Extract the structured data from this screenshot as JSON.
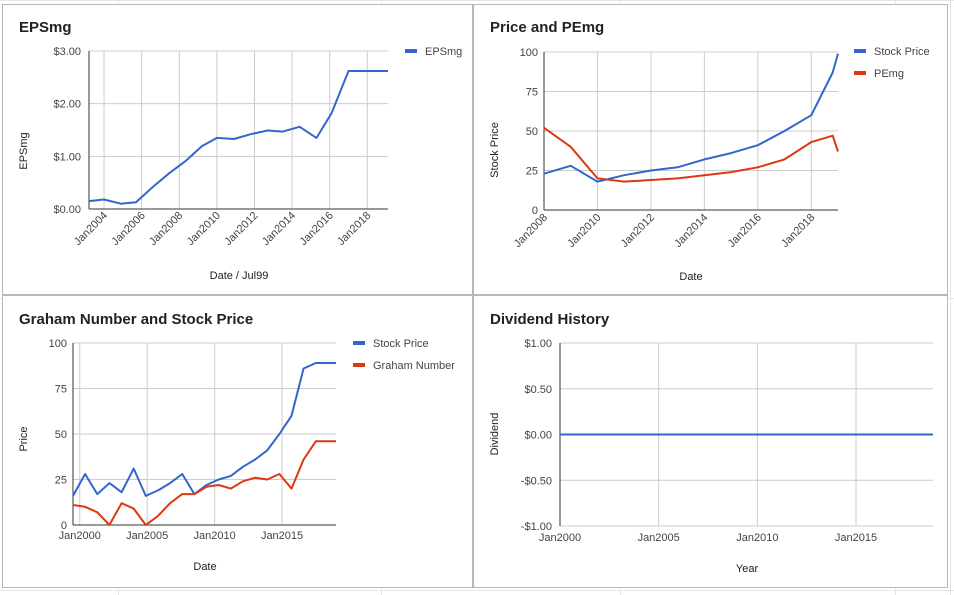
{
  "charts": [
    {
      "id": "eps",
      "title": "EPSmg",
      "xlabel": "Date / Jul99",
      "ylabel": "EPSmg",
      "chart_data": {
        "type": "line",
        "title": "EPSmg",
        "xlabel": "Date / Jul99",
        "ylabel": "EPSmg",
        "x_domain": [
          2003.2,
          2019.1
        ],
        "ylim": [
          0,
          3
        ],
        "y_ticks": [
          0,
          1,
          2,
          3
        ],
        "y_tick_labels": [
          "$0.00",
          "$1.00",
          "$2.00",
          "$3.00"
        ],
        "x_ticks": [
          2004,
          2006,
          2008,
          2010,
          2012,
          2014,
          2016,
          2018
        ],
        "x_tick_labels": [
          "Jan2004",
          "Jan2006",
          "Jan2008",
          "Jan2010",
          "Jan2012",
          "Jan2014",
          "Jan2016",
          "Jan2018"
        ],
        "x_label_rotation": -45,
        "legend_position": "top-right",
        "grid": true,
        "series": [
          {
            "name": "EPSmg",
            "color": "#3366cc",
            "x": [
              2003.2,
              2004.0,
              2004.9,
              2005.7,
              2006.6,
              2007.5,
              2008.3,
              2009.2,
              2010.0,
              2010.9,
              2011.8,
              2012.7,
              2013.5,
              2014.4,
              2015.3,
              2016.1,
              2017.0,
              2017.9,
              2018.7,
              2019.1
            ],
            "y": [
              0.15,
              0.18,
              0.1,
              0.13,
              0.42,
              0.69,
              0.9,
              1.19,
              1.35,
              1.33,
              1.42,
              1.49,
              1.47,
              1.56,
              1.35,
              1.82,
              2.62,
              2.62,
              2.62,
              2.62
            ]
          }
        ]
      }
    },
    {
      "id": "pe",
      "title": "Price and PEmg",
      "xlabel": "Date",
      "ylabel": "Stock Price",
      "chart_data": {
        "type": "line",
        "title": "Price and PEmg",
        "xlabel": "Date",
        "ylabel": "Stock Price",
        "x_domain": [
          2008.0,
          2019.0
        ],
        "ylim": [
          0,
          100
        ],
        "y_ticks": [
          0,
          25,
          50,
          75,
          100
        ],
        "y_tick_labels": [
          "0",
          "25",
          "50",
          "75",
          "100"
        ],
        "x_ticks": [
          2008,
          2010,
          2012,
          2014,
          2016,
          2018
        ],
        "x_tick_labels": [
          "Jan2008",
          "Jan2010",
          "Jan2012",
          "Jan2014",
          "Jan2016",
          "Jan2018"
        ],
        "x_label_rotation": -45,
        "legend_position": "top-right",
        "grid": true,
        "series": [
          {
            "name": "Stock Price",
            "color": "#3366cc",
            "x": [
              2008.0,
              2009.0,
              2010.0,
              2011.0,
              2012.0,
              2013.0,
              2014.0,
              2015.0,
              2016.0,
              2017.0,
              2018.0,
              2018.8,
              2019.0
            ],
            "y": [
              23,
              28,
              18,
              22,
              25,
              27,
              32,
              36,
              41,
              50,
              60,
              87,
              99
            ]
          },
          {
            "name": "PEmg",
            "color": "#dc3912",
            "x": [
              2008.0,
              2009.0,
              2010.0,
              2011.0,
              2012.0,
              2013.0,
              2014.0,
              2015.0,
              2016.0,
              2017.0,
              2018.0,
              2018.8,
              2019.0
            ],
            "y": [
              52,
              40,
              20,
              18,
              19,
              20,
              22,
              24,
              27,
              32,
              43,
              47,
              37
            ]
          }
        ]
      }
    },
    {
      "id": "graham",
      "title": "Graham Number and Stock Price",
      "xlabel": "Date",
      "ylabel": "Price",
      "chart_data": {
        "type": "line",
        "title": "Graham Number and Stock Price",
        "xlabel": "Date",
        "ylabel": "Price",
        "x_domain": [
          1999.5,
          2019.0
        ],
        "ylim": [
          0,
          100
        ],
        "y_ticks": [
          0,
          25,
          50,
          75,
          100
        ],
        "y_tick_labels": [
          "0",
          "25",
          "50",
          "75",
          "100"
        ],
        "x_ticks": [
          2000,
          2005,
          2010,
          2015
        ],
        "x_tick_labels": [
          "Jan2000",
          "Jan2005",
          "Jan2010",
          "Jan2015"
        ],
        "x_label_rotation": 0,
        "legend_position": "top-right",
        "grid": true,
        "series": [
          {
            "name": "Stock Price",
            "color": "#3366cc",
            "x": [
              1999.5,
              2000.4,
              2001.3,
              2002.2,
              2003.1,
              2004.0,
              2004.9,
              2005.8,
              2006.7,
              2007.6,
              2008.5,
              2009.4,
              2010.3,
              2011.2,
              2012.1,
              2013.0,
              2013.9,
              2014.8,
              2015.7,
              2016.6,
              2017.5,
              2018.4,
              2019.0
            ],
            "y": [
              16,
              28,
              17,
              23,
              18,
              31,
              16,
              19,
              23,
              28,
              17,
              22,
              25,
              27,
              32,
              36,
              41,
              50,
              60,
              86,
              89,
              89,
              89
            ]
          },
          {
            "name": "Graham Number",
            "color": "#dc3912",
            "x": [
              1999.5,
              2000.4,
              2001.3,
              2002.2,
              2003.1,
              2004.0,
              2004.9,
              2005.8,
              2006.7,
              2007.6,
              2008.5,
              2009.4,
              2010.3,
              2011.2,
              2012.1,
              2013.0,
              2013.9,
              2014.8,
              2015.7,
              2016.6,
              2017.5,
              2018.4,
              2019.0
            ],
            "y": [
              11,
              10,
              7,
              0,
              12,
              9,
              0,
              5,
              12,
              17,
              17,
              21,
              22,
              20,
              24,
              26,
              25,
              28,
              20,
              36,
              46,
              46,
              46
            ]
          }
        ]
      }
    },
    {
      "id": "dividend",
      "title": "Dividend History",
      "xlabel": "Year",
      "ylabel": "Dividend",
      "chart_data": {
        "type": "line",
        "title": "Dividend History",
        "xlabel": "Year",
        "ylabel": "Dividend",
        "x_domain": [
          2000.0,
          2018.9
        ],
        "ylim": [
          -1,
          1
        ],
        "y_ticks": [
          -1,
          -0.5,
          0,
          0.5,
          1
        ],
        "y_tick_labels": [
          "-$1.00",
          "-$0.50",
          "$0.00",
          "$0.50",
          "$1.00"
        ],
        "x_ticks": [
          2000,
          2005,
          2010,
          2015
        ],
        "x_tick_labels": [
          "Jan2000",
          "Jan2005",
          "Jan2010",
          "Jan2015"
        ],
        "x_label_rotation": 0,
        "grid": true,
        "series": [
          {
            "color": "#3366cc",
            "x": [
              2000.0,
              2018.9
            ],
            "y": [
              0,
              0
            ]
          }
        ]
      }
    }
  ]
}
